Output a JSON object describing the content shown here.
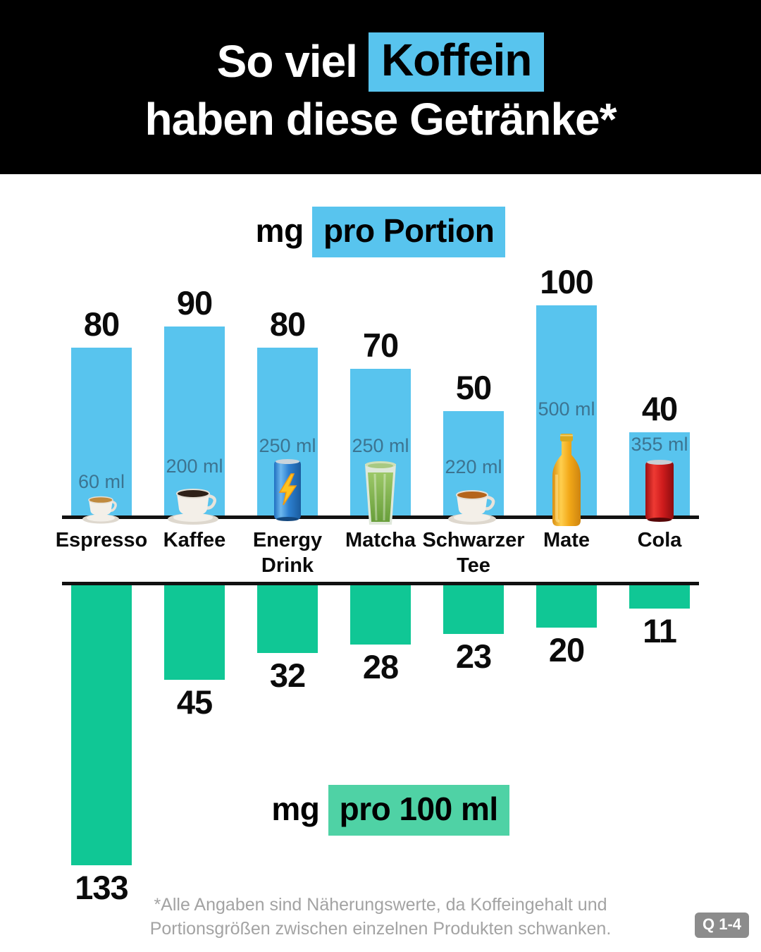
{
  "header": {
    "title_line1_prefix": "So viel",
    "title_line1_highlight": "Koffein",
    "title_line2": "haben diese Getränke*"
  },
  "axis_captions": {
    "top_prefix": "mg",
    "top_highlight": "pro Portion",
    "bottom_prefix": "mg",
    "bottom_highlight": "pro 100 ml"
  },
  "drinks": [
    {
      "name": "Espresso",
      "serving": "60 ml",
      "icon": "espresso-cup-icon"
    },
    {
      "name": "Kaffee",
      "serving": "200 ml",
      "icon": "coffee-cup-icon"
    },
    {
      "name": "Energy Drink",
      "serving": "250 ml",
      "icon": "energy-drink-can-icon"
    },
    {
      "name": "Matcha",
      "serving": "250 ml",
      "icon": "matcha-glass-icon"
    },
    {
      "name": "Schwarzer Tee",
      "serving": "220 ml",
      "icon": "black-tea-cup-icon"
    },
    {
      "name": "Mate",
      "serving": "500 ml",
      "icon": "mate-bottle-icon"
    },
    {
      "name": "Cola",
      "serving": "355 ml",
      "icon": "cola-can-icon"
    }
  ],
  "footnote": {
    "line1": "*Alle Angaben sind Näherungswerte, da Koffeingehalt und",
    "line2": "Portionsgrößen zwischen einzelnen Produkten schwanken.",
    "badge": "Q 1-4"
  },
  "colors": {
    "header_bg": "#000000",
    "bar_blue": "#58C4EE",
    "highlight_blue": "#58C4EE",
    "bar_green": "#10C795",
    "highlight_green": "#4FD2A5",
    "ml_label_text": "#3C7491",
    "footnote_gray": "#A3A3A3",
    "badge_gray": "#8C8C8C"
  },
  "chart_data": {
    "type": "bar",
    "title": "So viel Koffein haben diese Getränke*",
    "categories": [
      "Espresso",
      "Kaffee",
      "Energy Drink",
      "Matcha",
      "Schwarzer Tee",
      "Mate",
      "Cola"
    ],
    "series": [
      {
        "name": "mg pro Portion",
        "values": [
          80,
          90,
          80,
          70,
          50,
          100,
          40
        ],
        "color": "#58C4EE",
        "direction": "up"
      },
      {
        "name": "mg pro 100 ml",
        "values": [
          133,
          45,
          32,
          28,
          23,
          20,
          11
        ],
        "color": "#10C795",
        "direction": "down"
      }
    ],
    "servings_ml": [
      60,
      200,
      250,
      250,
      220,
      500,
      355
    ],
    "xlabel": "",
    "ylabel_top": "mg pro Portion",
    "ylabel_bottom": "mg pro 100 ml",
    "grid": false,
    "legend_position": "none",
    "layout": "diverging-mirror, shared category axis between the two baselines"
  }
}
